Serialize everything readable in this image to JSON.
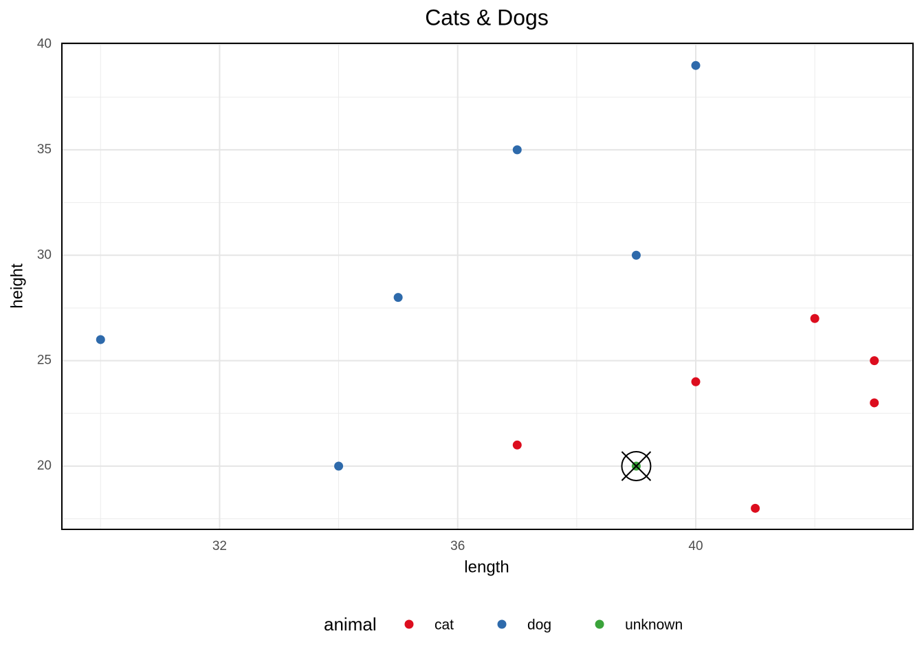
{
  "chart_data": {
    "type": "scatter",
    "title": "Cats & Dogs",
    "x_label": "length",
    "y_label": "height",
    "xlim": [
      29.35,
      43.65
    ],
    "ylim": [
      17,
      40.05
    ],
    "xticks": [
      32,
      36,
      40
    ],
    "yticks": [
      20,
      25,
      30,
      35,
      40
    ],
    "grid": true,
    "legend": {
      "title": "animal",
      "position": "bottom"
    },
    "series": [
      {
        "name": "cat",
        "color": "#dc0d1e",
        "x": [
          37,
          40,
          41,
          42,
          43,
          43
        ],
        "values": [
          21,
          24,
          18,
          27,
          25,
          23
        ]
      },
      {
        "name": "dog",
        "color": "#2e6aab",
        "x": [
          30,
          34,
          35,
          37,
          39,
          40
        ],
        "values": [
          26,
          20,
          28,
          35,
          30,
          39
        ]
      },
      {
        "name": "unknown",
        "color": "#3aa33a",
        "x": [
          39
        ],
        "values": [
          20
        ],
        "highlight": true
      }
    ]
  }
}
